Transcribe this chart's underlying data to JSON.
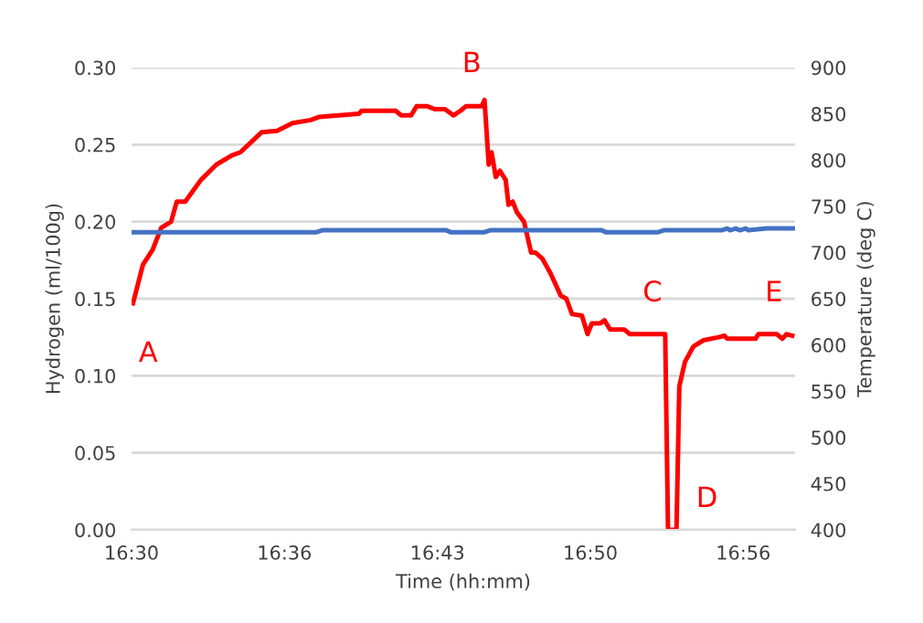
{
  "chart_data": {
    "type": "line",
    "xlabel": "Time (hh:mm)",
    "ylabel": "Hydrogen (ml/100g)",
    "y2label": "Temperature (deg C)",
    "xlim": [
      16.5,
      16.97
    ],
    "xticks": [
      {
        "value": 16.5,
        "label": "16:30"
      },
      {
        "value": 16.6083,
        "label": "16:36"
      },
      {
        "value": 16.7167,
        "label": "16:43"
      },
      {
        "value": 16.825,
        "label": "16:50"
      },
      {
        "value": 16.9333,
        "label": "16:56"
      }
    ],
    "ylim": [
      0,
      0.3
    ],
    "yticks": [
      {
        "value": 0,
        "label": "0.00"
      },
      {
        "value": 0.05,
        "label": "0.05"
      },
      {
        "value": 0.1,
        "label": "0.10"
      },
      {
        "value": 0.15,
        "label": "0.15"
      },
      {
        "value": 0.2,
        "label": "0.20"
      },
      {
        "value": 0.25,
        "label": "0.25"
      },
      {
        "value": 0.3,
        "label": "0.30"
      }
    ],
    "y2lim": [
      400,
      900
    ],
    "y2ticks": [
      400,
      450,
      500,
      550,
      600,
      650,
      700,
      750,
      800,
      850,
      900
    ],
    "grid": "y",
    "marker": "none",
    "line_style": "solid",
    "series": [
      {
        "color": "#ff0000",
        "x": [
          16.501,
          16.508,
          16.515,
          16.521,
          16.528,
          16.532,
          16.538,
          16.549,
          16.56,
          16.571,
          16.577,
          16.584,
          16.592,
          16.603,
          16.614,
          16.627,
          16.633,
          16.661,
          16.663,
          16.687,
          16.691,
          16.698,
          16.702,
          16.709,
          16.715,
          16.722,
          16.728,
          16.733,
          16.737,
          16.748,
          16.75,
          16.753,
          16.755,
          16.758,
          16.761,
          16.765,
          16.767,
          16.77,
          16.773,
          16.778,
          16.783,
          16.786,
          16.791,
          16.797,
          16.804,
          16.808,
          16.812,
          16.819,
          16.823,
          16.826,
          16.832,
          16.835,
          16.839,
          16.849,
          16.853,
          16.864,
          16.878,
          16.88,
          16.886,
          16.888,
          16.892,
          16.898,
          16.905,
          16.916,
          16.92,
          16.922,
          16.942,
          16.944,
          16.957,
          16.961,
          16.964,
          16.968
        ],
        "values": [
          0.147,
          0.172,
          0.182,
          0.196,
          0.2,
          0.213,
          0.213,
          0.227,
          0.237,
          0.243,
          0.245,
          0.251,
          0.258,
          0.259,
          0.264,
          0.266,
          0.268,
          0.27,
          0.272,
          0.272,
          0.269,
          0.269,
          0.275,
          0.275,
          0.273,
          0.273,
          0.269,
          0.272,
          0.275,
          0.275,
          0.279,
          0.237,
          0.245,
          0.229,
          0.233,
          0.227,
          0.211,
          0.213,
          0.206,
          0.2,
          0.18,
          0.18,
          0.176,
          0.166,
          0.152,
          0.15,
          0.14,
          0.139,
          0.127,
          0.134,
          0.134,
          0.136,
          0.13,
          0.13,
          0.127,
          0.127,
          0.127,
          0.0,
          0.0,
          0.093,
          0.109,
          0.119,
          0.123,
          0.125,
          0.126,
          0.124,
          0.124,
          0.127,
          0.127,
          0.124,
          0.127,
          0.126
        ]
      },
      {
        "color": "#4472c4",
        "axis": "y2",
        "x": [
          16.5,
          16.631,
          16.635,
          16.723,
          16.726,
          16.75,
          16.754,
          16.833,
          16.836,
          16.873,
          16.877,
          16.918,
          16.922,
          16.924,
          16.928,
          16.931,
          16.935,
          16.937,
          16.95,
          16.97
        ],
        "values": [
          722,
          722,
          724,
          724,
          722,
          722,
          724,
          724,
          722,
          722,
          724,
          724,
          726,
          724,
          726,
          724,
          726,
          724,
          726,
          726
        ]
      }
    ],
    "annotations": [
      {
        "text": "A",
        "x": 16.501,
        "y": 0.147
      },
      {
        "text": "B",
        "x": 16.75,
        "y": 0.279
      },
      {
        "text": "C",
        "x": 16.878,
        "y": 0.127
      },
      {
        "text": "D",
        "x": 16.886,
        "y": 0.0
      },
      {
        "text": "E",
        "x": 16.964,
        "y": 0.127
      }
    ]
  }
}
